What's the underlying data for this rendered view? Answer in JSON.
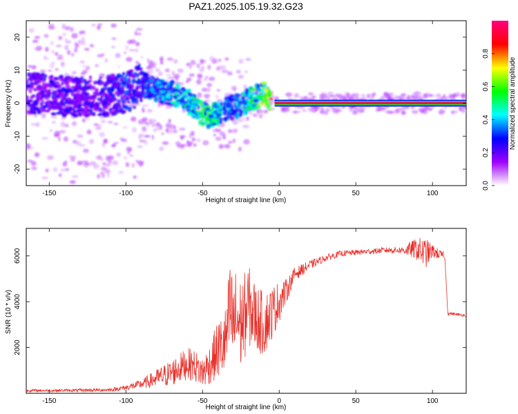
{
  "title": "PAZ1.2025.105.19.32.G23",
  "colors": {
    "snr_line": "#e8302a",
    "spectrogram_core": [
      "#ff1a1a",
      "#ffd000",
      "#00ff3c",
      "#19e6e6",
      "#1a3cff",
      "#5a00e0",
      "#c7a7f5"
    ]
  },
  "chart_data": [
    {
      "type": "heatmap",
      "title": "PAZ1.2025.105.19.32.G23",
      "xlabel": "Height of straight line (km)",
      "ylabel": "Frequency (Hz)",
      "xlim": [
        -165,
        122
      ],
      "ylim": [
        -25,
        25
      ],
      "xticks": [
        -150,
        -100,
        -50,
        0,
        50,
        100
      ],
      "yticks": [
        -20,
        -10,
        0,
        10,
        20
      ],
      "colorbar": {
        "label": "Normalized spectral amplitude",
        "range": [
          0,
          1
        ],
        "ticks": [
          "0.0",
          "0.2",
          "0.4",
          "0.6",
          "0.8"
        ],
        "tick_values": [
          0.0,
          0.2,
          0.4,
          0.6,
          0.8
        ],
        "colormap": [
          "#ffffff",
          "#9f00ff",
          "#0000ff",
          "#00ffff",
          "#00ff00",
          "#ffff00",
          "#ff0000",
          "#ff007f"
        ]
      },
      "ridge": {
        "x": [
          -160,
          -140,
          -120,
          -100,
          -90,
          -80,
          -70,
          -60,
          -55,
          -50,
          -45,
          -40,
          -35,
          -30,
          -25,
          -20,
          -15,
          -10,
          -5,
          0,
          20,
          40,
          60,
          80,
          100,
          120
        ],
        "freq": [
          3,
          2,
          2,
          3,
          6,
          4,
          3,
          1,
          -1,
          -3,
          -4,
          -3,
          -2,
          -1,
          -1,
          1,
          2,
          3,
          1,
          0,
          0,
          0,
          0,
          0,
          0,
          0
        ],
        "amplitude": [
          0.2,
          0.2,
          0.2,
          0.25,
          0.25,
          0.3,
          0.35,
          0.4,
          0.45,
          0.5,
          0.45,
          0.4,
          0.3,
          0.3,
          0.35,
          0.4,
          0.45,
          0.5,
          0.6,
          0.9,
          0.95,
          0.95,
          0.95,
          0.95,
          0.9,
          0.9
        ]
      }
    },
    {
      "type": "line",
      "xlabel": "Height of straight line (km)",
      "ylabel": "SNR (10 * v/v)",
      "xlim": [
        -165,
        122
      ],
      "ylim": [
        0,
        7200
      ],
      "xticks": [
        -150,
        -100,
        -50,
        0,
        50,
        100
      ],
      "yticks": [
        2000,
        4000,
        6000
      ],
      "series": [
        {
          "x": [
            -165,
            -150,
            -130,
            -110,
            -100,
            -90,
            -80,
            -70,
            -60,
            -55,
            -50,
            -45,
            -40,
            -35,
            -32,
            -30,
            -28,
            -25,
            -20,
            -15,
            -10,
            -5,
            0,
            5,
            10,
            20,
            30,
            40,
            50,
            60,
            70,
            80,
            90,
            95,
            100,
            105,
            108,
            110,
            115,
            122
          ],
          "values": [
            120,
            120,
            130,
            150,
            250,
            400,
            650,
            900,
            1300,
            1200,
            900,
            1300,
            1900,
            2200,
            3600,
            3000,
            3300,
            3000,
            3800,
            3300,
            3000,
            3500,
            4000,
            4500,
            5200,
            5600,
            5900,
            6100,
            6150,
            6200,
            6250,
            6250,
            6300,
            6100,
            6200,
            6050,
            6000,
            3500,
            3450,
            3400
          ],
          "noise": [
            60,
            60,
            70,
            80,
            120,
            200,
            400,
            600,
            700,
            700,
            700,
            900,
            1300,
            1600,
            2200,
            2200,
            2200,
            2000,
            1800,
            1500,
            1400,
            1200,
            900,
            500,
            300,
            200,
            150,
            130,
            120,
            120,
            130,
            150,
            500,
            700,
            300,
            200,
            150,
            80,
            60,
            60
          ]
        }
      ]
    }
  ]
}
